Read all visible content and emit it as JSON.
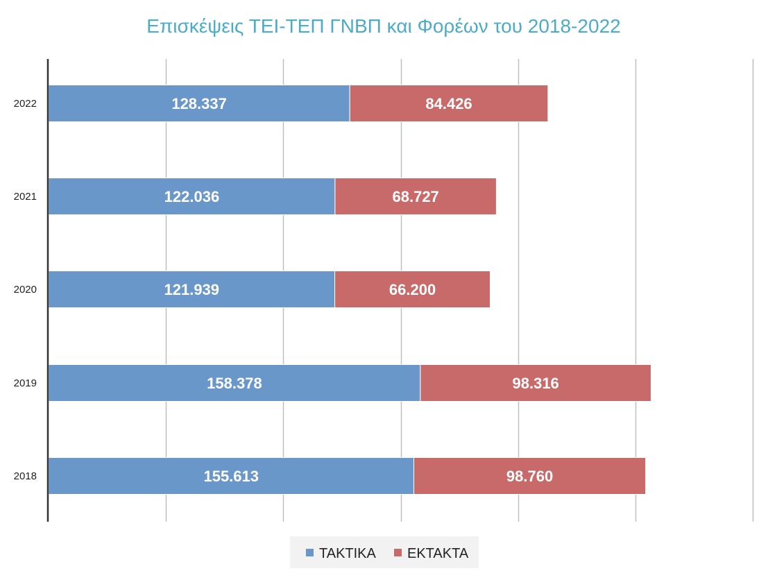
{
  "chart_data": {
    "type": "bar",
    "orientation": "horizontal",
    "stacked": true,
    "title": "Επισκέψεις ΤΕΙ-ΤΕΠ ΓΝΒΠ και Φορέων του 2018-2022",
    "xlabel": "",
    "ylabel": "",
    "categories": [
      "2022",
      "2021",
      "2020",
      "2019",
      "2018"
    ],
    "series": [
      {
        "name": "ΤΑΚΤΙΚΑ",
        "color": "#6A97C9",
        "values": [
          128337,
          122036,
          121939,
          158378,
          155613
        ],
        "labels": [
          "128.337",
          "122.036",
          "121.939",
          "158.378",
          "155.613"
        ]
      },
      {
        "name": "ΕΚΤΑΚΤΑ",
        "color": "#C96A6A",
        "values": [
          84426,
          68727,
          66200,
          98316,
          98760
        ],
        "labels": [
          "84.426",
          "68.727",
          "66.200",
          "98.316",
          "98.760"
        ]
      }
    ],
    "xlim": [
      0,
      300000
    ],
    "x_gridline_step": 50000,
    "x_tick_labels_visible": false,
    "grid": true,
    "legend_position": "bottom"
  }
}
